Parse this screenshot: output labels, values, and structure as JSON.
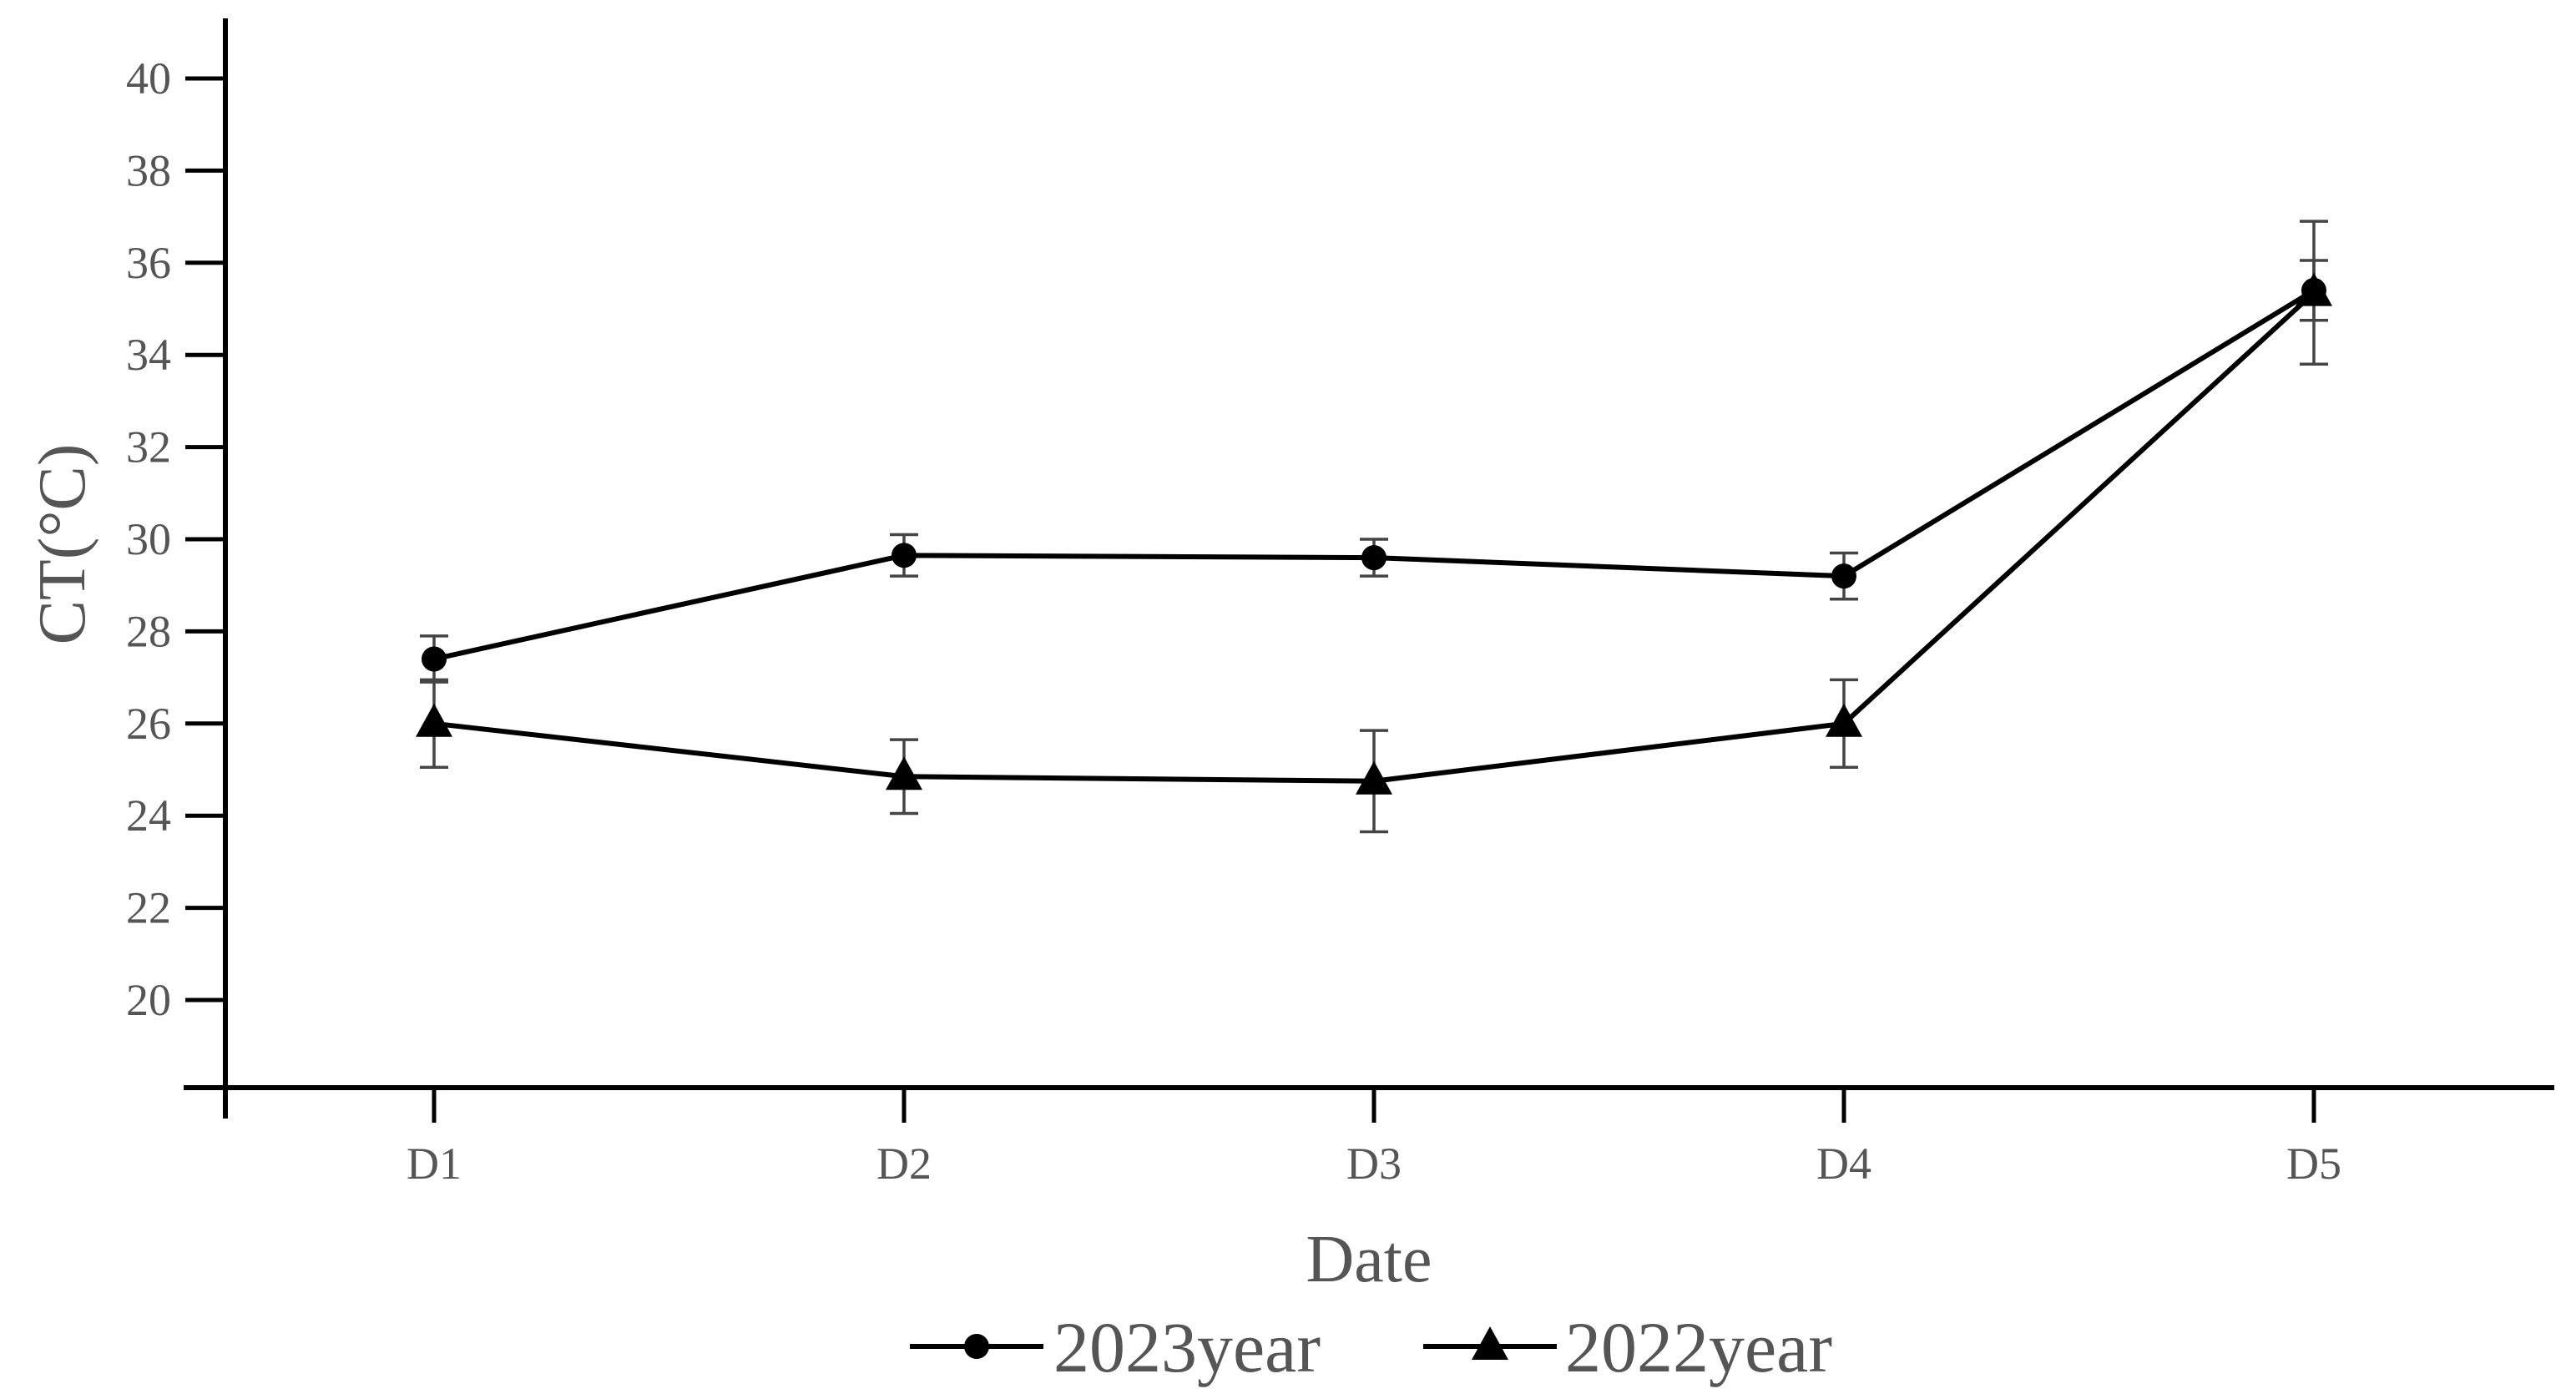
{
  "chart_data": {
    "type": "line",
    "title": "",
    "xlabel": "Date",
    "ylabel": "CT(°C)",
    "categories": [
      "D1",
      "D2",
      "D3",
      "D4",
      "D5"
    ],
    "ylim": [
      18,
      41
    ],
    "yticks": [
      20,
      22,
      24,
      26,
      28,
      30,
      32,
      34,
      36,
      38,
      40
    ],
    "ytick_labels": [
      "20",
      "22",
      "24",
      "26",
      "28",
      "30",
      "32",
      "34",
      "36",
      "38",
      "40"
    ],
    "grid": false,
    "legend_position": "bottom-center",
    "series": [
      {
        "name": "2023year",
        "marker": "circle",
        "color": "#000000",
        "values": [
          27.4,
          29.65,
          29.6,
          29.2,
          35.4
        ],
        "errors": [
          0.5,
          0.45,
          0.4,
          0.5,
          0.65
        ]
      },
      {
        "name": "2022year",
        "marker": "triangle",
        "color": "#000000",
        "values": [
          26.0,
          24.85,
          24.75,
          26.0,
          35.35
        ],
        "errors": [
          0.95,
          0.8,
          1.1,
          0.95,
          1.55
        ]
      }
    ]
  }
}
